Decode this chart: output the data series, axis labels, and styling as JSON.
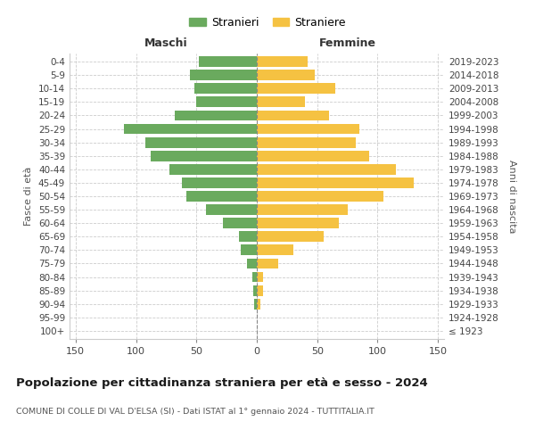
{
  "age_groups": [
    "100+",
    "95-99",
    "90-94",
    "85-89",
    "80-84",
    "75-79",
    "70-74",
    "65-69",
    "60-64",
    "55-59",
    "50-54",
    "45-49",
    "40-44",
    "35-39",
    "30-34",
    "25-29",
    "20-24",
    "15-19",
    "10-14",
    "5-9",
    "0-4"
  ],
  "birth_years": [
    "≤ 1923",
    "1924-1928",
    "1929-1933",
    "1934-1938",
    "1939-1943",
    "1944-1948",
    "1949-1953",
    "1954-1958",
    "1959-1963",
    "1964-1968",
    "1969-1973",
    "1974-1978",
    "1979-1983",
    "1984-1988",
    "1989-1993",
    "1994-1998",
    "1999-2003",
    "2004-2008",
    "2009-2013",
    "2014-2018",
    "2019-2023"
  ],
  "males": [
    0,
    0,
    2,
    3,
    4,
    8,
    13,
    15,
    28,
    42,
    58,
    62,
    72,
    88,
    92,
    110,
    68,
    50,
    52,
    55,
    48
  ],
  "females": [
    0,
    0,
    3,
    5,
    5,
    18,
    30,
    55,
    68,
    75,
    105,
    130,
    115,
    93,
    82,
    85,
    60,
    40,
    65,
    48,
    42
  ],
  "male_color": "#6aaa5e",
  "female_color": "#f5c242",
  "background_color": "#ffffff",
  "grid_color": "#cccccc",
  "title": "Popolazione per cittadinanza straniera per età e sesso - 2024",
  "subtitle": "COMUNE DI COLLE DI VAL D'ELSA (SI) - Dati ISTAT al 1° gennaio 2024 - TUTTITALIA.IT",
  "ylabel_left": "Fasce di età",
  "ylabel_right": "Anni di nascita",
  "xlim": 155,
  "legend_males": "Stranieri",
  "legend_females": "Straniere",
  "maschi_label": "Maschi",
  "femmine_label": "Femmine"
}
